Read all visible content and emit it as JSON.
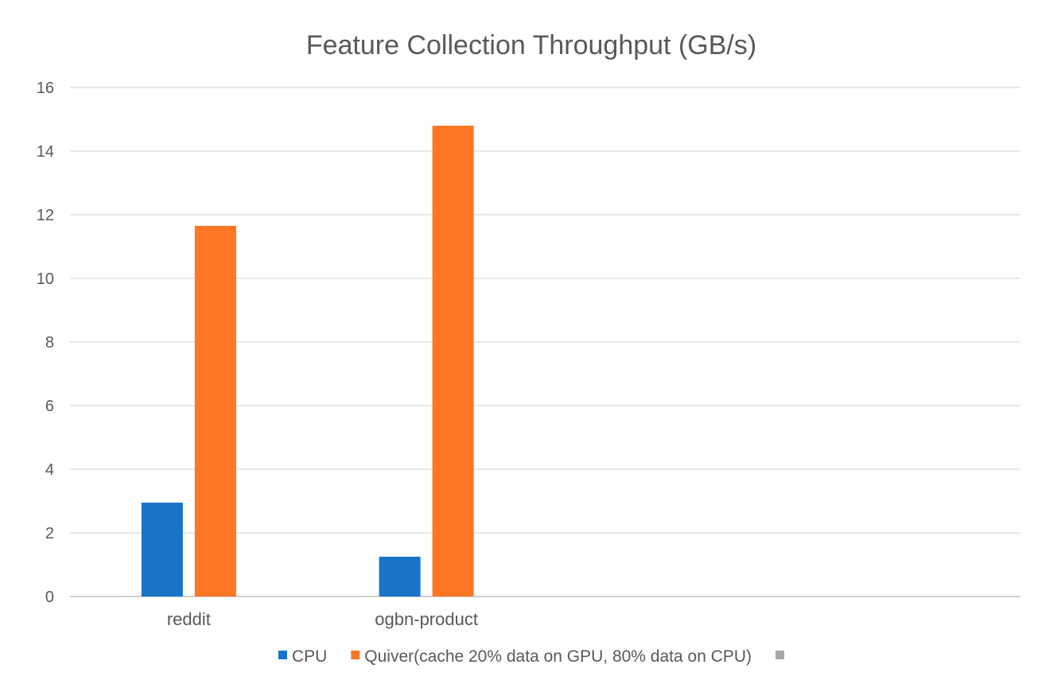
{
  "chart_data": {
    "type": "bar",
    "title": "Feature Collection Throughput (GB/s)",
    "categories": [
      "reddit",
      "ogbn-product",
      "",
      ""
    ],
    "series": [
      {
        "name": "CPU",
        "color": "#1873c9",
        "values": [
          2.95,
          1.25,
          null,
          null
        ]
      },
      {
        "name": "Quiver(cache 20% data on GPU, 80% data on CPU)",
        "color": "#fd7624",
        "values": [
          11.65,
          14.8,
          null,
          null
        ]
      },
      {
        "name": "",
        "color": "#a6a6a6",
        "values": [
          null,
          null,
          null,
          null
        ]
      }
    ],
    "ylim": [
      0,
      16
    ],
    "yticks": [
      0,
      2,
      4,
      6,
      8,
      10,
      12,
      14,
      16
    ],
    "grid": true,
    "legend": "bottom"
  }
}
